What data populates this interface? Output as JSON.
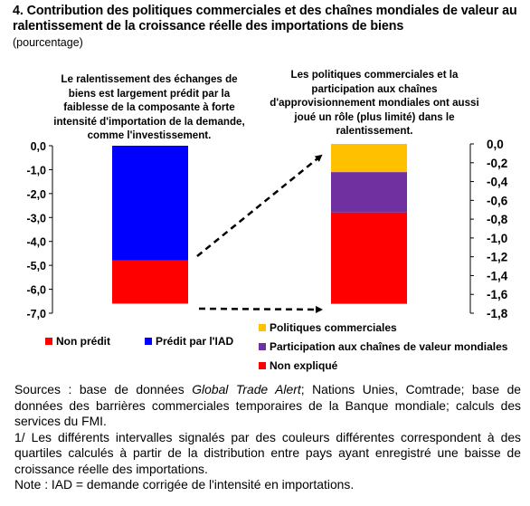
{
  "title": "4. Contribution des politiques commerciales et des chaînes mondiales de valeur au ralentissement de la croissance réelle des importations de biens",
  "subtitle": "(pourcentage)",
  "annotations": {
    "left": "Le ralentissement des échanges de biens est largement prédit par la faiblesse de la composante à forte intensité d'importation de la demande, comme l'investissement.",
    "right": "Les politiques commerciales et la participation aux chaînes d'approvisionnement mondiales ont aussi joué un rôle (plus limité) dans le ralentissement."
  },
  "colors": {
    "predicted": "#0000ff",
    "not_predicted": "#ff0000",
    "trade_policy": "#ffc000",
    "gvc": "#7030a0",
    "unexplained": "#ff0000"
  },
  "legend_left": [
    {
      "label": "Non prédit",
      "color": "#ff0000"
    },
    {
      "label": "Prédit par l'IAD",
      "color": "#0000ff"
    }
  ],
  "legend_right": [
    {
      "label": "Politiques commerciales",
      "color": "#ffc000"
    },
    {
      "label": "Participation aux chaînes de valeur mondiales",
      "color": "#7030a0"
    },
    {
      "label": "Non expliqué",
      "color": "#ff0000"
    }
  ],
  "notes": {
    "sources_prefix": "Sources : base de données ",
    "sources_italic": "Global Trade Alert",
    "sources_suffix": "; Nations Unies, Comtrade; base de données des barrières commerciales temporaires de la Banque mondiale; calculs des services du FMI.",
    "note1": "1/ Les différents intervalles signalés par des couleurs différentes correspondent à des quartiles calculés à partir de la distribution entre pays ayant enregistré une baisse de croissance réelle des importations.",
    "note2": "Note : IAD = demande corrigée de l'intensité en importations."
  },
  "chart_data": [
    {
      "type": "bar",
      "stacked": true,
      "ylim": [
        -7.0,
        0.0
      ],
      "yticks": [
        "0,0",
        "-1,0",
        "-2,0",
        "-3,0",
        "-4,0",
        "-5,0",
        "-6,0",
        "-7,0"
      ],
      "series": [
        {
          "name": "Prédit par l'IAD",
          "values": [
            -4.8
          ]
        },
        {
          "name": "Non prédit",
          "values": [
            -1.8
          ]
        }
      ],
      "total": -6.6
    },
    {
      "type": "bar",
      "stacked": true,
      "ylim": [
        -1.8,
        0.0
      ],
      "yticks": [
        "0,0",
        "-0,2",
        "-0,4",
        "-0,6",
        "-0,8",
        "-1,0",
        "-1,2",
        "-1,4",
        "-1,6",
        "-1,8"
      ],
      "series": [
        {
          "name": "Politiques commerciales",
          "values": [
            -0.3
          ]
        },
        {
          "name": "Participation aux chaînes de valeur mondiales",
          "values": [
            -0.43
          ]
        },
        {
          "name": "Non expliqué",
          "values": [
            -0.97
          ]
        }
      ],
      "total": -1.7
    }
  ]
}
